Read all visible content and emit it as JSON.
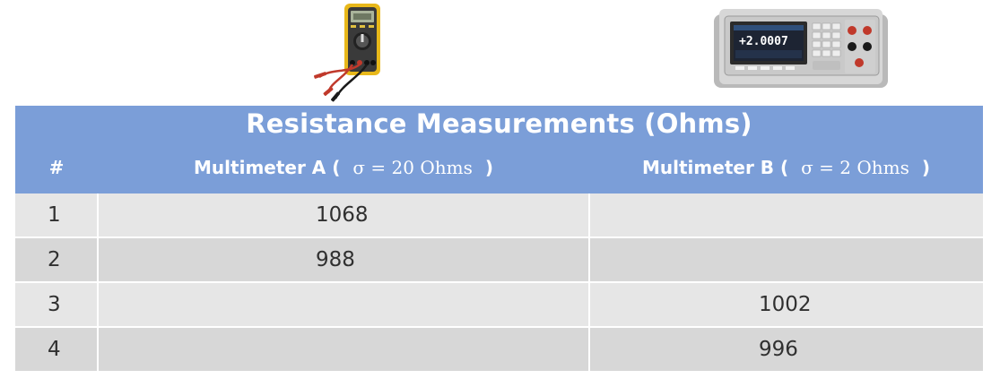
{
  "images": {
    "multimeter_a": "handheld-multimeter-icon",
    "multimeter_b": "benchtop-multimeter-icon",
    "display_b": "+2.0007"
  },
  "table": {
    "title": "Resistance Measurements (Ohms)",
    "headers": {
      "number": "#",
      "col_a": {
        "label": "Multimeter A (",
        "sigma": "σ = 20 Ohms",
        "close": ")"
      },
      "col_b": {
        "label": "Multimeter B (",
        "sigma": "σ = 2 Ohms",
        "close": ")"
      }
    },
    "rows": [
      {
        "num": "1",
        "a": "1068",
        "b": ""
      },
      {
        "num": "2",
        "a": "988",
        "b": ""
      },
      {
        "num": "3",
        "a": "",
        "b": "1002"
      },
      {
        "num": "4",
        "a": "",
        "b": "996"
      }
    ]
  },
  "colors": {
    "header_bg": "#7b9ed8",
    "row_odd": "#e6e6e6",
    "row_even": "#d7d7d7"
  }
}
